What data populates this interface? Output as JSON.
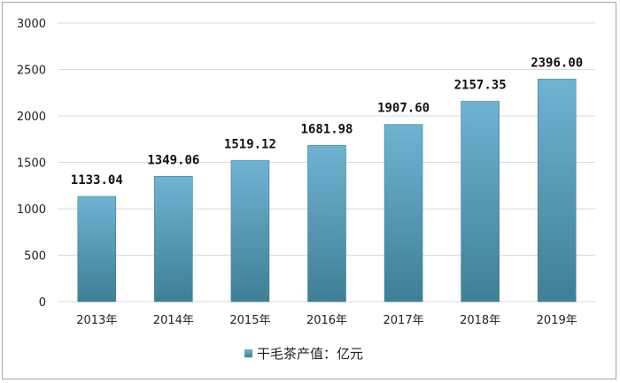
{
  "chart_data": {
    "type": "bar",
    "categories": [
      "2013年",
      "2014年",
      "2015年",
      "2016年",
      "2017年",
      "2018年",
      "2019年"
    ],
    "series": [
      {
        "name": "干毛茶产值：亿元",
        "values": [
          1133.04,
          1349.06,
          1519.12,
          1681.98,
          1907.6,
          2157.35,
          2396.0
        ]
      }
    ],
    "data_labels": [
      "1133.04",
      "1349.06",
      "1519.12",
      "1681.98",
      "1907.60",
      "2157.35",
      "2396.00"
    ],
    "yticks": [
      "0",
      "500",
      "1000",
      "1500",
      "2000",
      "2500",
      "3000"
    ],
    "ylim": [
      0,
      3000
    ],
    "grid": true,
    "legend_position": "bottom",
    "colors": {
      "bar_top": "#6fb3d2",
      "bar_bottom": "#3f7f96",
      "grid": "#d9d9d9"
    }
  }
}
